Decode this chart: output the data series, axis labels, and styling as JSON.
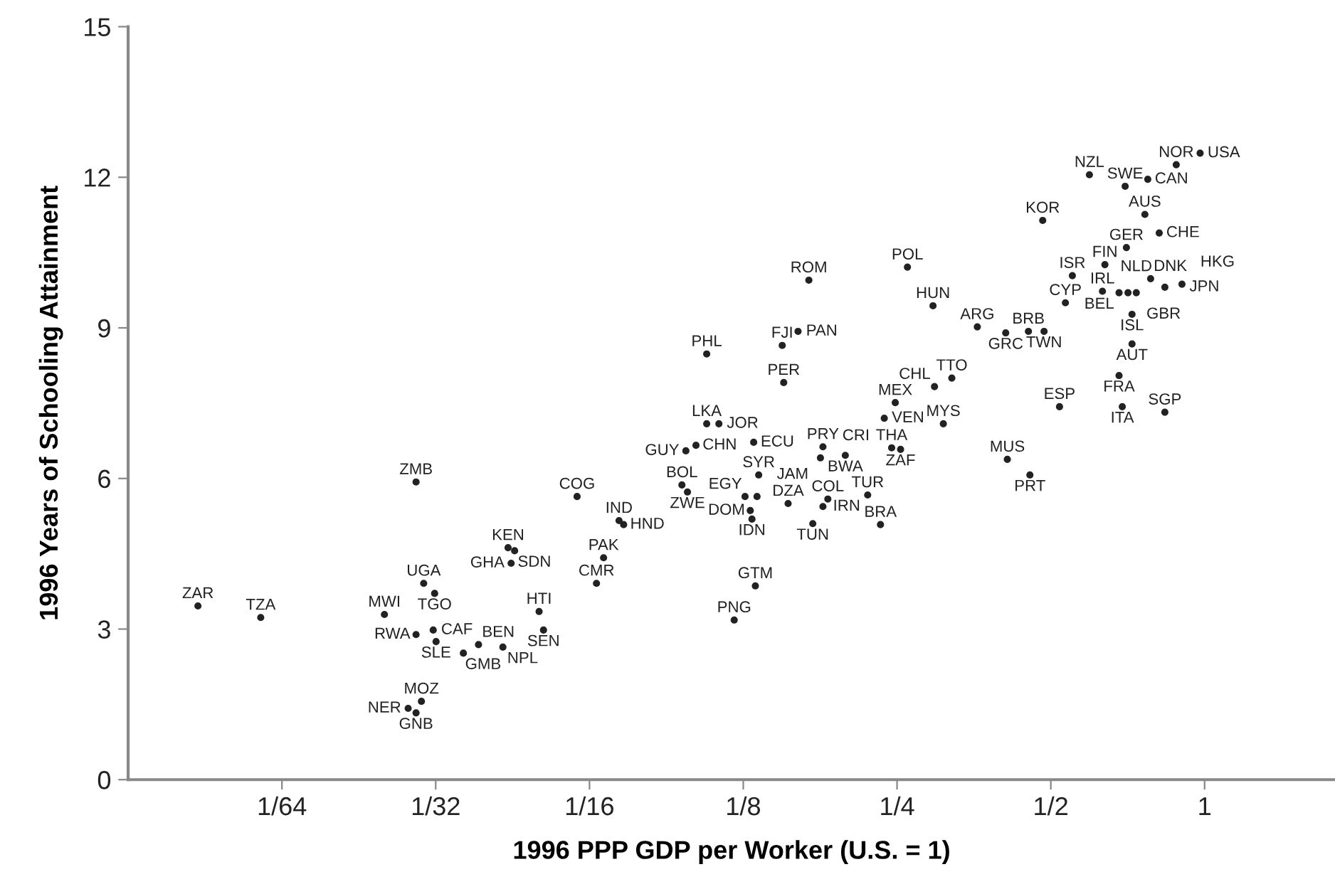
{
  "chart_data": {
    "type": "scatter",
    "xlabel": "1996 PPP GDP per Worker (U.S. = 1)",
    "ylabel": "1996 Years of Schooling Attainment",
    "log": "x",
    "xlim": [
      0.0078125,
      1.8
    ],
    "ylim": [
      0,
      15
    ],
    "yticks": [
      0,
      3,
      6,
      9,
      12,
      15
    ],
    "xticks": [
      {
        "value": 0.015625,
        "label": "1/64"
      },
      {
        "value": 0.03125,
        "label": "1/32"
      },
      {
        "value": 0.0625,
        "label": "1/16"
      },
      {
        "value": 0.125,
        "label": "1/8"
      },
      {
        "value": 0.25,
        "label": "1/4"
      },
      {
        "value": 0.5,
        "label": "1/2"
      },
      {
        "value": 1,
        "label": "1"
      }
    ],
    "grid": false,
    "marker": "circle",
    "series": [
      {
        "color": "#222222",
        "x": [
          0.0107,
          0.0142,
          0.0248,
          0.0286,
          0.0296,
          0.0311,
          0.0286,
          0.0309,
          0.0313,
          0.0354,
          0.0379,
          0.0423,
          0.0293,
          0.0276,
          0.0286,
          0.0433,
          0.0446,
          0.0439,
          0.0508,
          0.0498,
          0.0645,
          0.0666,
          0.0591,
          0.0714,
          0.0729,
          0.0948,
          0.0972,
          0.0965,
          0.101,
          0.106,
          0.112,
          0.131,
          0.134,
          0.126,
          0.133,
          0.129,
          0.13,
          0.153,
          0.179,
          0.183,
          0.219,
          0.171,
          0.232,
          0.132,
          0.12,
          0.15,
          0.106,
          0.149,
          0.16,
          0.168,
          0.262,
          0.294,
          0.359,
          0.408,
          0.452,
          0.485,
          0.179,
          0.177,
          0.198,
          0.244,
          0.254,
          0.248,
          0.236,
          0.308,
          0.296,
          0.32,
          0.411,
          0.455,
          0.52,
          0.482,
          0.551,
          0.534,
          0.638,
          0.703,
          0.764,
          0.815,
          0.595,
          0.699,
          0.774,
          0.88,
          0.98,
          0.631,
          0.68,
          0.708,
          0.735,
          0.784,
          0.836,
          0.903,
          0.721,
          0.721,
          0.68,
          0.69,
          0.836
        ],
        "values": [
          3.46,
          3.23,
          3.29,
          5.93,
          3.91,
          3.71,
          2.89,
          2.98,
          2.75,
          2.52,
          2.69,
          2.64,
          1.56,
          1.42,
          1.33,
          4.62,
          4.56,
          4.31,
          2.98,
          3.35,
          3.91,
          4.42,
          5.64,
          5.16,
          5.08,
          5.87,
          5.73,
          6.55,
          6.66,
          7.09,
          7.09,
          6.72,
          6.07,
          5.64,
          5.64,
          5.36,
          5.19,
          5.5,
          5.44,
          5.59,
          5.67,
          5.1,
          5.08,
          3.86,
          3.18,
          7.91,
          8.48,
          8.65,
          8.93,
          9.95,
          10.21,
          9.44,
          9.02,
          8.9,
          8.93,
          8.93,
          6.63,
          6.41,
          6.46,
          6.61,
          6.58,
          7.51,
          7.2,
          7.09,
          7.83,
          8.0,
          6.38,
          6.07,
          7.43,
          11.14,
          10.04,
          9.5,
          10.26,
          10.6,
          11.26,
          10.89,
          12.05,
          11.82,
          11.96,
          12.25,
          12.48,
          9.73,
          9.7,
          9.7,
          9.7,
          9.98,
          9.81,
          9.87,
          9.27,
          8.68,
          8.05,
          7.43,
          7.32
        ],
        "value_labels": [
          "ZAR",
          "TZA",
          "MWI",
          "ZMB",
          "UGA",
          "TGO",
          "RWA",
          "CAF",
          "SLE",
          "GMB",
          "BEN",
          "NPL",
          "MOZ",
          "NER",
          "GNB",
          "KEN",
          "SDN",
          "GHA",
          "SEN",
          "HTI",
          "CMR",
          "PAK",
          "COG",
          "IND",
          "HND",
          "BOL",
          "ZWE",
          "GUY",
          "CHN",
          "LKA",
          "JOR",
          "ECU",
          "SYR",
          "EGY",
          "JAM",
          "DOM",
          "IDN",
          "DZA",
          "IRN",
          "COL",
          "TUR",
          "TUN",
          "BRA",
          "GTM",
          "PNG",
          "PER",
          "PHL",
          "FJI",
          "PAN",
          "ROM",
          "POL",
          "HUN",
          "ARG",
          "GRC",
          "BRB",
          "TWN",
          "PRY",
          "CRI",
          "BWA",
          "THA",
          "ZAF",
          "MEX",
          "VEN",
          "MYS",
          "CHL",
          "TTO",
          "MUS",
          "PRT",
          "ESP",
          "KOR",
          "ISR",
          "CYP",
          "FIN",
          "GER",
          "AUS",
          "CHE",
          "NZL",
          "SWE",
          "CAN",
          "NOR",
          "USA",
          "IRL",
          "BEL",
          "GBR",
          "NLD",
          "DNK",
          "JPN",
          "HKG",
          "ISL",
          "AUT",
          "FRA",
          "ITA",
          "SGP"
        ]
      }
    ]
  }
}
